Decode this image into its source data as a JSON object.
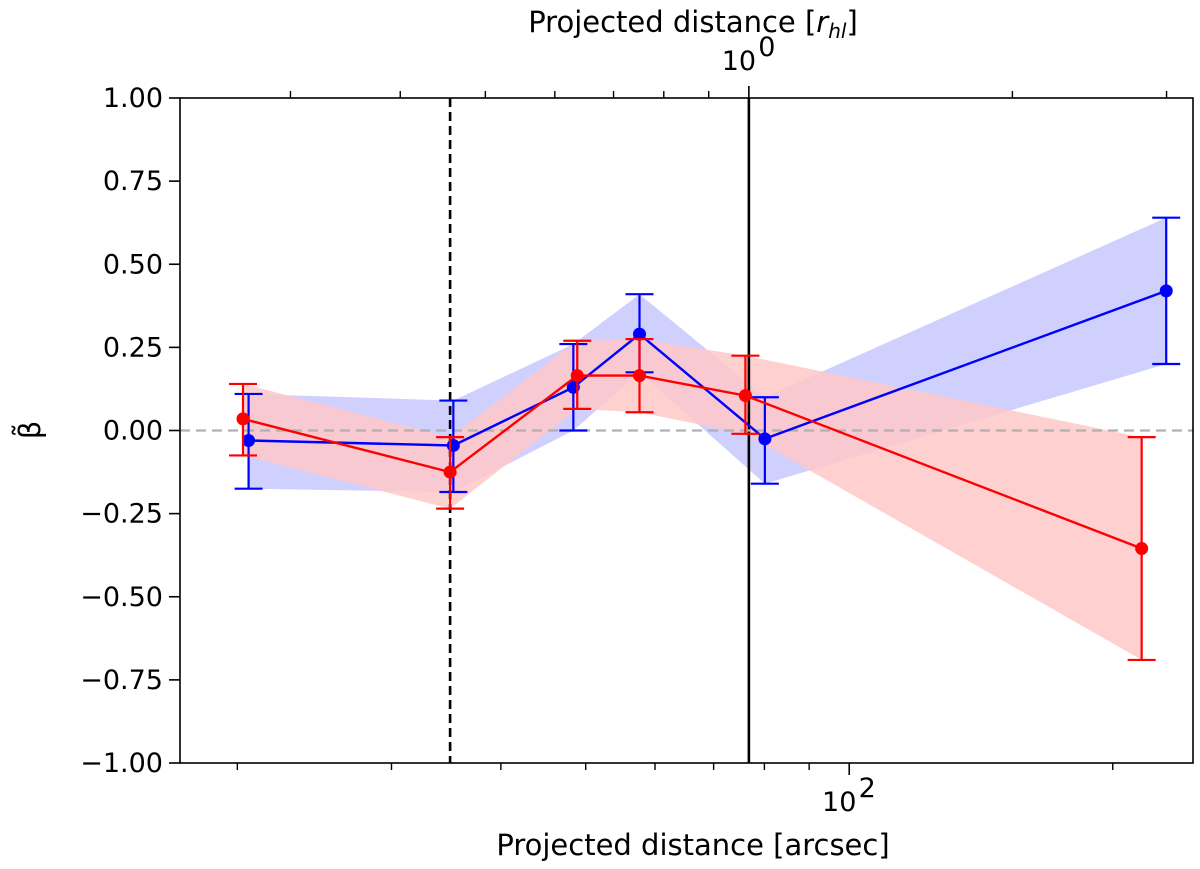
{
  "chart_data": {
    "type": "line",
    "xlabel": "Projected distance [arcsec]",
    "xlabel_top": "Projected distance [",
    "xlabel_top_unit": "r",
    "xlabel_top_unit_sub": "hl",
    "xlabel_top_close": "]",
    "ylabel": "β̃",
    "xscale": "log",
    "xlim": [
      17.2,
      247
    ],
    "ylim": [
      -1.0,
      1.0
    ],
    "yticks": [
      -1.0,
      -0.75,
      -0.5,
      -0.25,
      0.0,
      0.25,
      0.5,
      0.75,
      1.0
    ],
    "ytick_labels": [
      "−1.00",
      "−0.75",
      "−0.50",
      "−0.25",
      "0.00",
      "0.25",
      "0.50",
      "0.75",
      "1.00"
    ],
    "xtick_major": {
      "value": 100,
      "base": "10",
      "exp": "2"
    },
    "xtick_minor": [
      20,
      30,
      40,
      50,
      60,
      70,
      80,
      90,
      200
    ],
    "top_tick_major": {
      "value": 76.8,
      "base": "10",
      "exp": "0"
    },
    "top_tick_minor": [
      23.0,
      30.7,
      38.4,
      46.1,
      53.8,
      61.4,
      69.1,
      153.6,
      230.4
    ],
    "reference_lines": [
      {
        "name": "dashed-vertical",
        "x": 35.0,
        "style": "dashed",
        "color": "#000000"
      },
      {
        "name": "solid-vertical",
        "x": 76.8,
        "style": "solid",
        "color": "#000000"
      },
      {
        "name": "zero-line",
        "y": 0.0,
        "style": "dashed",
        "color": "#b0b0b0"
      }
    ],
    "series": [
      {
        "name": "blue",
        "color": "#0000ff",
        "band_color": "#c8c8ff",
        "x": [
          20.6,
          35.3,
          48.4,
          57.6,
          80.1,
          230.2
        ],
        "y": [
          -0.03,
          -0.045,
          0.13,
          0.29,
          -0.025,
          0.42
        ],
        "err_low": [
          -0.175,
          -0.185,
          0.0,
          0.175,
          -0.16,
          0.2
        ],
        "err_high": [
          0.11,
          0.09,
          0.26,
          0.41,
          0.1,
          0.64
        ]
      },
      {
        "name": "red",
        "color": "#ff0000",
        "band_color": "#ffc8c8",
        "x": [
          20.3,
          35.0,
          48.9,
          57.6,
          76.1,
          215.8
        ],
        "y": [
          0.035,
          -0.125,
          0.165,
          0.165,
          0.105,
          -0.355
        ],
        "err_low": [
          -0.075,
          -0.235,
          0.065,
          0.055,
          -0.01,
          -0.69
        ],
        "err_high": [
          0.14,
          -0.02,
          0.27,
          0.275,
          0.225,
          -0.02
        ]
      }
    ]
  }
}
